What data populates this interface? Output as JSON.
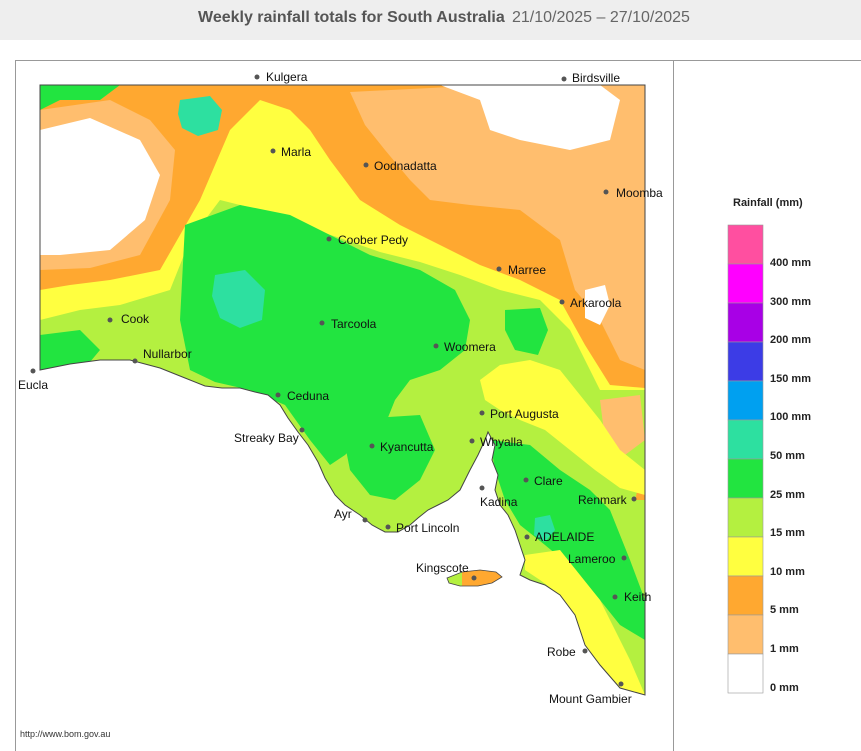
{
  "header": {
    "title": "Weekly rainfall totals for South Australia",
    "dates": "21/10/2025 – 27/10/2025"
  },
  "legend": {
    "title": "Rainfall (mm)",
    "labels": [
      "400 mm",
      "300 mm",
      "200 mm",
      "150 mm",
      "100 mm",
      "50 mm",
      "25 mm",
      "15 mm",
      "10 mm",
      "5 mm",
      "1 mm",
      "0 mm"
    ],
    "colors": [
      "#ff4fa0",
      "#ff00ff",
      "#a800e6",
      "#3c3ce6",
      "#00a0f0",
      "#2de0a0",
      "#22e440",
      "#b4f040",
      "#ffff40",
      "#ffa830",
      "#ffbe6e",
      "#ffffff"
    ]
  },
  "places": [
    {
      "name": "Kulgera"
    },
    {
      "name": "Birdsville"
    },
    {
      "name": "Marla"
    },
    {
      "name": "Oodnadatta"
    },
    {
      "name": "Moomba"
    },
    {
      "name": "Coober Pedy"
    },
    {
      "name": "Marree"
    },
    {
      "name": "Arkaroola"
    },
    {
      "name": "Cook"
    },
    {
      "name": "Tarcoola"
    },
    {
      "name": "Nullarbor"
    },
    {
      "name": "Woomera"
    },
    {
      "name": "Eucla"
    },
    {
      "name": "Ceduna"
    },
    {
      "name": "Port Augusta"
    },
    {
      "name": "Streaky Bay"
    },
    {
      "name": "Kyancutta"
    },
    {
      "name": "Whyalla"
    },
    {
      "name": "Clare"
    },
    {
      "name": "Kadina"
    },
    {
      "name": "Renmark"
    },
    {
      "name": "Ayr"
    },
    {
      "name": "Port Lincoln"
    },
    {
      "name": "ADELAIDE"
    },
    {
      "name": "Lameroo"
    },
    {
      "name": "Kingscote"
    },
    {
      "name": "Keith"
    },
    {
      "name": "Robe"
    },
    {
      "name": "Mount Gambier"
    }
  ],
  "footer": {
    "url": "http://www.bom.gov.au"
  }
}
